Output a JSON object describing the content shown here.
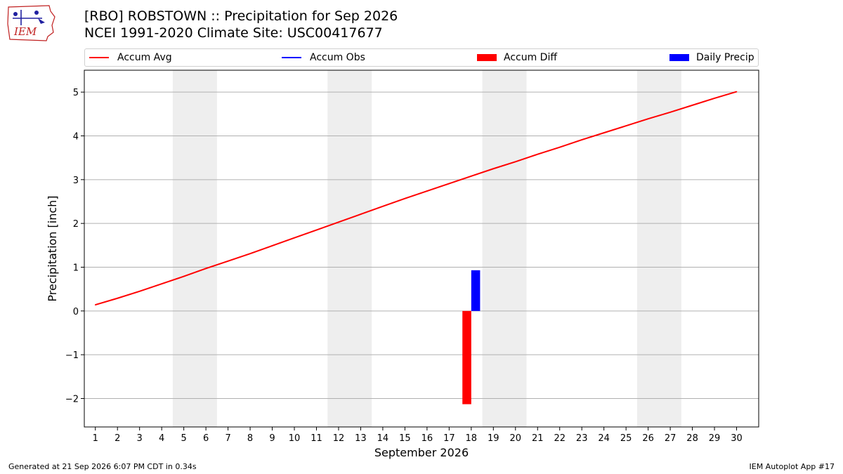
{
  "header": {
    "logo_text": "IEM",
    "title_line1": "[RBO] ROBSTOWN :: Precipitation for Sep 2026",
    "title_line2": "NCEI 1991-2020 Climate Site: USC00417677"
  },
  "legend": {
    "items": [
      {
        "label": "Accum Avg",
        "kind": "line",
        "color": "#ff0000"
      },
      {
        "label": "Accum Obs",
        "kind": "line",
        "color": "#0000ff"
      },
      {
        "label": "Accum Diff",
        "kind": "patch",
        "color": "#ff0000"
      },
      {
        "label": "Daily Precip",
        "kind": "patch",
        "color": "#0000ff"
      }
    ]
  },
  "footer": {
    "left": "Generated at 21 Sep 2026 6:07 PM CDT in 0.34s",
    "right": "IEM Autoplot App #17"
  },
  "chart_data": {
    "type": "line",
    "xlabel": "September 2026",
    "ylabel": "Precipitation [inch]",
    "xlim": [
      0.5,
      31
    ],
    "ylim": [
      -2.65,
      5.5
    ],
    "grid": "horizontal",
    "legend_position": "top",
    "x": [
      1,
      2,
      3,
      4,
      5,
      6,
      7,
      8,
      9,
      10,
      11,
      12,
      13,
      14,
      15,
      16,
      17,
      18,
      19,
      20,
      21,
      22,
      23,
      24,
      25,
      26,
      27,
      28,
      29,
      30
    ],
    "x_tick_labels": [
      "1",
      "2",
      "3",
      "4",
      "5",
      "6",
      "7",
      "8",
      "9",
      "10",
      "11",
      "12",
      "13",
      "14",
      "15",
      "16",
      "17",
      "18",
      "19",
      "20",
      "21",
      "22",
      "23",
      "24",
      "25",
      "26",
      "27",
      "28",
      "29",
      "30"
    ],
    "y_ticks": [
      -2,
      -1,
      0,
      1,
      2,
      3,
      4,
      5
    ],
    "y_tick_labels": [
      "−2",
      "−1",
      "0",
      "1",
      "2",
      "3",
      "4",
      "5"
    ],
    "weekend_shading": [
      [
        5,
        6
      ],
      [
        12,
        13
      ],
      [
        19,
        20
      ],
      [
        26,
        27
      ]
    ],
    "series": [
      {
        "name": "Accum Avg",
        "type": "line",
        "color": "#ff0000",
        "values": [
          0.14,
          0.29,
          0.45,
          0.62,
          0.79,
          0.97,
          1.14,
          1.31,
          1.49,
          1.67,
          1.85,
          2.03,
          2.21,
          2.39,
          2.57,
          2.74,
          2.91,
          3.08,
          3.25,
          3.41,
          3.58,
          3.74,
          3.91,
          4.07,
          4.23,
          4.39,
          4.54,
          4.7,
          4.86,
          5.01
        ]
      },
      {
        "name": "Accum Diff",
        "type": "bar",
        "color": "#ff0000",
        "points": [
          {
            "x": 18,
            "value": -2.13
          }
        ]
      },
      {
        "name": "Daily Precip",
        "type": "bar",
        "color": "#0000ff",
        "points": [
          {
            "x": 18,
            "value": 0.93
          }
        ]
      }
    ]
  }
}
